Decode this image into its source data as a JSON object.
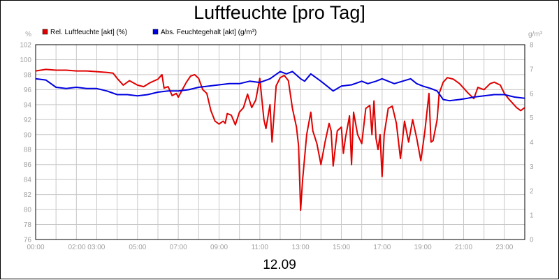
{
  "title": "Luftfeuchte [pro Tag]",
  "footer": "12.09",
  "chart_data": {
    "type": "line",
    "title": "Luftfeuchte [pro Tag]",
    "left_axis": {
      "unit": "%",
      "min": 76,
      "max": 102,
      "ticks": [
        76,
        78,
        80,
        82,
        84,
        86,
        88,
        90,
        92,
        94,
        96,
        98,
        100,
        102
      ]
    },
    "right_axis": {
      "unit": "g/m³",
      "min": 0,
      "max": 8,
      "ticks": [
        0,
        1,
        2,
        3,
        4,
        5,
        6,
        7,
        8
      ]
    },
    "x_axis": {
      "min_hour": 0,
      "max_hour": 24,
      "tick_labels": [
        "00:00",
        "02:00 03:00",
        "05:00",
        "07:00",
        "09:00",
        "11:00",
        "13:00",
        "15:00",
        "17:00",
        "19:00",
        "21:00",
        "23:00"
      ],
      "tick_hours": [
        0,
        2.5,
        5,
        7,
        9,
        11,
        13,
        15,
        17,
        19,
        21,
        23
      ]
    },
    "grid": true,
    "colors": {
      "rel": "#e00000",
      "abs": "#0000e0",
      "grid": "#c8c8c8",
      "tick_text": "#a0a0a0"
    },
    "legend": [
      {
        "label": "Rel. Luftfeuchte [akt] (%)",
        "color": "#e00000"
      },
      {
        "label": "Abs. Feuchtegehalt [akt] (g/m³)",
        "color": "#0000e0"
      }
    ],
    "series": [
      {
        "name": "Rel. Luftfeuchte [akt] (%)",
        "axis": "left",
        "points": [
          [
            0,
            98.5
          ],
          [
            0.5,
            98.7
          ],
          [
            1,
            98.6
          ],
          [
            1.5,
            98.6
          ],
          [
            2,
            98.5
          ],
          [
            2.5,
            98.5
          ],
          [
            3,
            98.4
          ],
          [
            3.5,
            98.3
          ],
          [
            3.8,
            98.2
          ],
          [
            4,
            97.5
          ],
          [
            4.3,
            96.6
          ],
          [
            4.6,
            97.2
          ],
          [
            5,
            96.6
          ],
          [
            5.3,
            96.4
          ],
          [
            5.6,
            96.9
          ],
          [
            6,
            97.4
          ],
          [
            6.2,
            98.0
          ],
          [
            6.3,
            96.2
          ],
          [
            6.5,
            96.4
          ],
          [
            6.7,
            95.2
          ],
          [
            6.9,
            95.5
          ],
          [
            7,
            95.0
          ],
          [
            7.2,
            96.0
          ],
          [
            7.4,
            97.0
          ],
          [
            7.6,
            97.8
          ],
          [
            7.8,
            98.0
          ],
          [
            8.0,
            97.5
          ],
          [
            8.2,
            96.0
          ],
          [
            8.4,
            95.5
          ],
          [
            8.6,
            93.2
          ],
          [
            8.8,
            91.8
          ],
          [
            9.0,
            91.4
          ],
          [
            9.2,
            91.8
          ],
          [
            9.3,
            91.5
          ],
          [
            9.4,
            92.8
          ],
          [
            9.6,
            92.6
          ],
          [
            9.8,
            91.3
          ],
          [
            10,
            93.0
          ],
          [
            10.2,
            93.6
          ],
          [
            10.4,
            95.4
          ],
          [
            10.6,
            93.6
          ],
          [
            10.8,
            94.6
          ],
          [
            11.0,
            97.5
          ],
          [
            11.2,
            92.0
          ],
          [
            11.3,
            90.8
          ],
          [
            11.5,
            94.0
          ],
          [
            11.6,
            89.0
          ],
          [
            11.8,
            96.5
          ],
          [
            12.0,
            97.6
          ],
          [
            12.2,
            97.9
          ],
          [
            12.4,
            97.2
          ],
          [
            12.6,
            93.5
          ],
          [
            12.8,
            91.0
          ],
          [
            12.9,
            88.5
          ],
          [
            13.0,
            79.9
          ],
          [
            13.1,
            84.0
          ],
          [
            13.3,
            90.0
          ],
          [
            13.5,
            93.0
          ],
          [
            13.6,
            90.5
          ],
          [
            13.8,
            88.8
          ],
          [
            14.0,
            86.0
          ],
          [
            14.2,
            89.0
          ],
          [
            14.4,
            91.5
          ],
          [
            14.5,
            90.5
          ],
          [
            14.6,
            85.8
          ],
          [
            14.8,
            90.5
          ],
          [
            15.0,
            91.0
          ],
          [
            15.1,
            87.5
          ],
          [
            15.2,
            89.5
          ],
          [
            15.4,
            92.5
          ],
          [
            15.5,
            86.0
          ],
          [
            15.6,
            93.0
          ],
          [
            15.8,
            90.0
          ],
          [
            16.0,
            88.8
          ],
          [
            16.2,
            93.5
          ],
          [
            16.4,
            93.9
          ],
          [
            16.5,
            90.0
          ],
          [
            16.6,
            94.5
          ],
          [
            16.7,
            89.5
          ],
          [
            16.8,
            88.0
          ],
          [
            16.9,
            90.0
          ],
          [
            17.0,
            84.4
          ],
          [
            17.1,
            90.0
          ],
          [
            17.3,
            93.5
          ],
          [
            17.5,
            93.8
          ],
          [
            17.7,
            91.5
          ],
          [
            17.9,
            86.8
          ],
          [
            18.1,
            91.8
          ],
          [
            18.3,
            89.0
          ],
          [
            18.5,
            92.0
          ],
          [
            18.7,
            89.5
          ],
          [
            18.9,
            86.5
          ],
          [
            19.1,
            90.5
          ],
          [
            19.3,
            95.5
          ],
          [
            19.4,
            89.0
          ],
          [
            19.5,
            89.2
          ],
          [
            19.7,
            92.0
          ],
          [
            19.8,
            95.5
          ],
          [
            20.0,
            97.0
          ],
          [
            20.2,
            97.6
          ],
          [
            20.5,
            97.4
          ],
          [
            20.8,
            96.8
          ],
          [
            21.0,
            96.2
          ],
          [
            21.2,
            95.6
          ],
          [
            21.5,
            94.8
          ],
          [
            21.7,
            96.3
          ],
          [
            22.0,
            96.0
          ],
          [
            22.3,
            96.8
          ],
          [
            22.5,
            97.0
          ],
          [
            22.8,
            96.6
          ],
          [
            23.0,
            95.5
          ],
          [
            23.2,
            94.8
          ],
          [
            23.4,
            94.2
          ],
          [
            23.6,
            93.6
          ],
          [
            23.8,
            93.2
          ],
          [
            24,
            93.6
          ]
        ]
      },
      {
        "name": "Abs. Feuchtegehalt [akt] (g/m³)",
        "axis": "right",
        "points": [
          [
            0,
            6.6
          ],
          [
            0.5,
            6.55
          ],
          [
            1,
            6.25
          ],
          [
            1.5,
            6.2
          ],
          [
            2,
            6.25
          ],
          [
            2.5,
            6.2
          ],
          [
            3,
            6.2
          ],
          [
            3.5,
            6.1
          ],
          [
            4,
            5.95
          ],
          [
            4.5,
            5.95
          ],
          [
            5,
            5.9
          ],
          [
            5.5,
            5.95
          ],
          [
            6,
            6.05
          ],
          [
            6.5,
            6.1
          ],
          [
            7,
            6.1
          ],
          [
            7.5,
            6.15
          ],
          [
            8,
            6.25
          ],
          [
            8.5,
            6.3
          ],
          [
            9,
            6.35
          ],
          [
            9.5,
            6.4
          ],
          [
            10,
            6.4
          ],
          [
            10.5,
            6.5
          ],
          [
            11,
            6.45
          ],
          [
            11.5,
            6.6
          ],
          [
            12,
            6.9
          ],
          [
            12.3,
            6.8
          ],
          [
            12.6,
            6.9
          ],
          [
            13,
            6.6
          ],
          [
            13.2,
            6.5
          ],
          [
            13.5,
            6.8
          ],
          [
            14,
            6.5
          ],
          [
            14.3,
            6.3
          ],
          [
            14.6,
            6.1
          ],
          [
            15,
            6.3
          ],
          [
            15.5,
            6.35
          ],
          [
            16,
            6.5
          ],
          [
            16.3,
            6.4
          ],
          [
            16.7,
            6.5
          ],
          [
            17,
            6.6
          ],
          [
            17.3,
            6.5
          ],
          [
            17.6,
            6.4
          ],
          [
            18,
            6.5
          ],
          [
            18.4,
            6.6
          ],
          [
            18.7,
            6.4
          ],
          [
            19.0,
            6.3
          ],
          [
            19.4,
            6.2
          ],
          [
            19.7,
            6.1
          ],
          [
            20.0,
            5.75
          ],
          [
            20.3,
            5.7
          ],
          [
            20.8,
            5.75
          ],
          [
            21.2,
            5.8
          ],
          [
            21.5,
            5.85
          ],
          [
            22.0,
            5.9
          ],
          [
            22.5,
            5.95
          ],
          [
            23,
            5.95
          ],
          [
            23.5,
            5.85
          ],
          [
            24,
            5.8
          ]
        ]
      }
    ]
  }
}
